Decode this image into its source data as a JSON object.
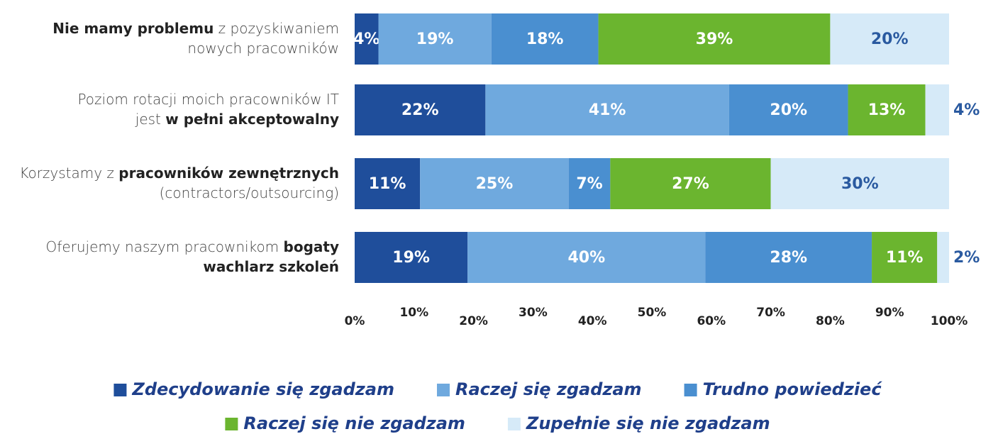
{
  "chart_data": {
    "type": "stacked-bar-horizontal",
    "categories": [
      [
        [
          {
            "text": "Nie mamy problemu",
            "bold": true
          },
          {
            "text": " z pozyskiwaniem",
            "bold": false
          }
        ],
        [
          {
            "text": "nowych pracowników",
            "bold": false
          }
        ]
      ],
      [
        [
          {
            "text": "Poziom rotacji moich pracowników IT",
            "bold": false
          }
        ],
        [
          {
            "text": "jest ",
            "bold": false
          },
          {
            "text": "w pełni akceptowalny",
            "bold": true
          }
        ]
      ],
      [
        [
          {
            "text": "Korzystamy z ",
            "bold": false
          },
          {
            "text": "pracowników zewnętrznych",
            "bold": true
          }
        ],
        [
          {
            "text": "(contractors/outsourcing)",
            "bold": false
          }
        ]
      ],
      [
        [
          {
            "text": "Oferujemy naszym pracownikom ",
            "bold": false
          },
          {
            "text": "bogaty",
            "bold": true
          }
        ],
        [
          {
            "text": "wachlarz szkoleń",
            "bold": true
          }
        ]
      ]
    ],
    "series": [
      {
        "name": "Zdecydowanie się zgadzam",
        "color": "#1f4e9b",
        "label_color": "#ffffff",
        "values": [
          4,
          22,
          11,
          19
        ],
        "value_labels": [
          "4%",
          "22%",
          "11%",
          "19%"
        ]
      },
      {
        "name": "Raczej się zgadzam",
        "color": "#6fa9de",
        "label_color": "#ffffff",
        "values": [
          19,
          41,
          25,
          40
        ],
        "value_labels": [
          "19%",
          "41%",
          "25%",
          "40%"
        ]
      },
      {
        "name": "Trudno powiedzieć",
        "color": "#4a8fd0",
        "label_color": "#ffffff",
        "values": [
          18,
          20,
          7,
          28
        ],
        "value_labels": [
          "18%",
          "20%",
          "7%",
          "28%"
        ]
      },
      {
        "name": "Raczej się nie zgadzam",
        "color": "#6bb52f",
        "label_color": "#ffffff",
        "values": [
          39,
          13,
          27,
          11
        ],
        "value_labels": [
          "39%",
          "13%",
          "27%",
          "11%"
        ]
      },
      {
        "name": "Zupełnie się nie zgadzam",
        "color": "#d6eaf8",
        "label_color": "#2a5aa0",
        "values": [
          20,
          4,
          30,
          2
        ],
        "value_labels": [
          "20%",
          "4%",
          "30%",
          "2%"
        ]
      }
    ],
    "xlim": [
      0,
      100
    ],
    "xticks": [
      {
        "value": 0,
        "label": "0%"
      },
      {
        "value": 10,
        "label": "10%"
      },
      {
        "value": 20,
        "label": "20%"
      },
      {
        "value": 30,
        "label": "30%"
      },
      {
        "value": 40,
        "label": "40%"
      },
      {
        "value": 50,
        "label": "50%"
      },
      {
        "value": 60,
        "label": "60%"
      },
      {
        "value": 70,
        "label": "70%"
      },
      {
        "value": 80,
        "label": "80%"
      },
      {
        "value": 90,
        "label": "90%"
      },
      {
        "value": 100,
        "label": "100%"
      }
    ]
  }
}
